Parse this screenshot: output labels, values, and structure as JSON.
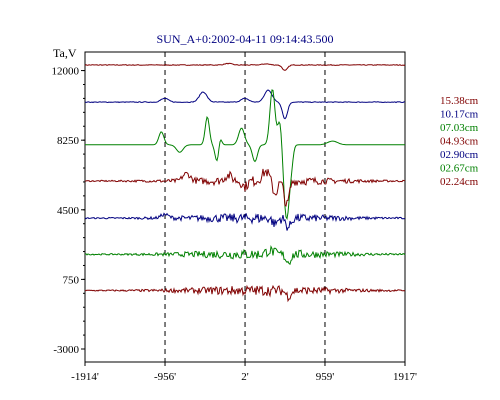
{
  "chart_data": {
    "type": "line",
    "title": "SUN_A+0:2002-04-11 09:14:43.500",
    "ylabel": "Ta,V",
    "xlabel": "",
    "x_ticks": [
      "-1914'",
      "-956'",
      "2'",
      "959'",
      "1917'"
    ],
    "y_ticks": [
      "12000",
      "8250",
      "4500",
      "750",
      "-3000"
    ],
    "ylim": [
      -3000,
      13000
    ],
    "grid": "dashed vertical lines at -956', 2', 959'",
    "legend_position": "right",
    "series": [
      {
        "name": "15.38cm",
        "color": "#800000",
        "baseline": 12300,
        "style": "smooth",
        "dips": [
          {
            "x": 480,
            "depth": 300
          }
        ],
        "bumps": [
          {
            "x": -200,
            "h": 80
          },
          {
            "x": 250,
            "h": 60
          }
        ]
      },
      {
        "name": "10.17cm",
        "color": "#000080",
        "baseline": 10300,
        "style": "smooth",
        "dips": [
          {
            "x": 480,
            "depth": 900
          }
        ],
        "bumps": [
          {
            "x": -960,
            "h": 200
          },
          {
            "x": -500,
            "h": 550
          },
          {
            "x": 0,
            "h": 200
          },
          {
            "x": 280,
            "h": 650
          }
        ]
      },
      {
        "name": "07.03cm",
        "color": "#008000",
        "baseline": 8000,
        "style": "green",
        "dips": [],
        "bumps": []
      },
      {
        "name": "04.93cm",
        "color": "#800000",
        "baseline": 6050,
        "style": "noisy",
        "dips": [
          {
            "x": 500,
            "depth": 1300
          },
          {
            "x": 360,
            "depth": 700
          },
          {
            "x": 0,
            "depth": 300
          }
        ],
        "bumps": [
          {
            "x": -700,
            "h": 400
          },
          {
            "x": 250,
            "h": 500
          },
          {
            "x": -200,
            "h": 300
          }
        ]
      },
      {
        "name": "02.90cm",
        "color": "#000080",
        "baseline": 4050,
        "style": "noisy",
        "dips": [
          {
            "x": 520,
            "depth": 500
          },
          {
            "x": 360,
            "depth": 300
          }
        ],
        "bumps": [
          {
            "x": -960,
            "h": 200
          }
        ]
      },
      {
        "name": "02.67cm",
        "color": "#008000",
        "baseline": 2100,
        "style": "noisy",
        "dips": [
          {
            "x": 520,
            "depth": 400
          }
        ],
        "bumps": [
          {
            "x": 300,
            "h": 200
          }
        ]
      },
      {
        "name": "02.24cm",
        "color": "#800000",
        "baseline": 150,
        "style": "noisy",
        "dips": [
          {
            "x": 520,
            "depth": 300
          }
        ],
        "bumps": []
      }
    ]
  }
}
